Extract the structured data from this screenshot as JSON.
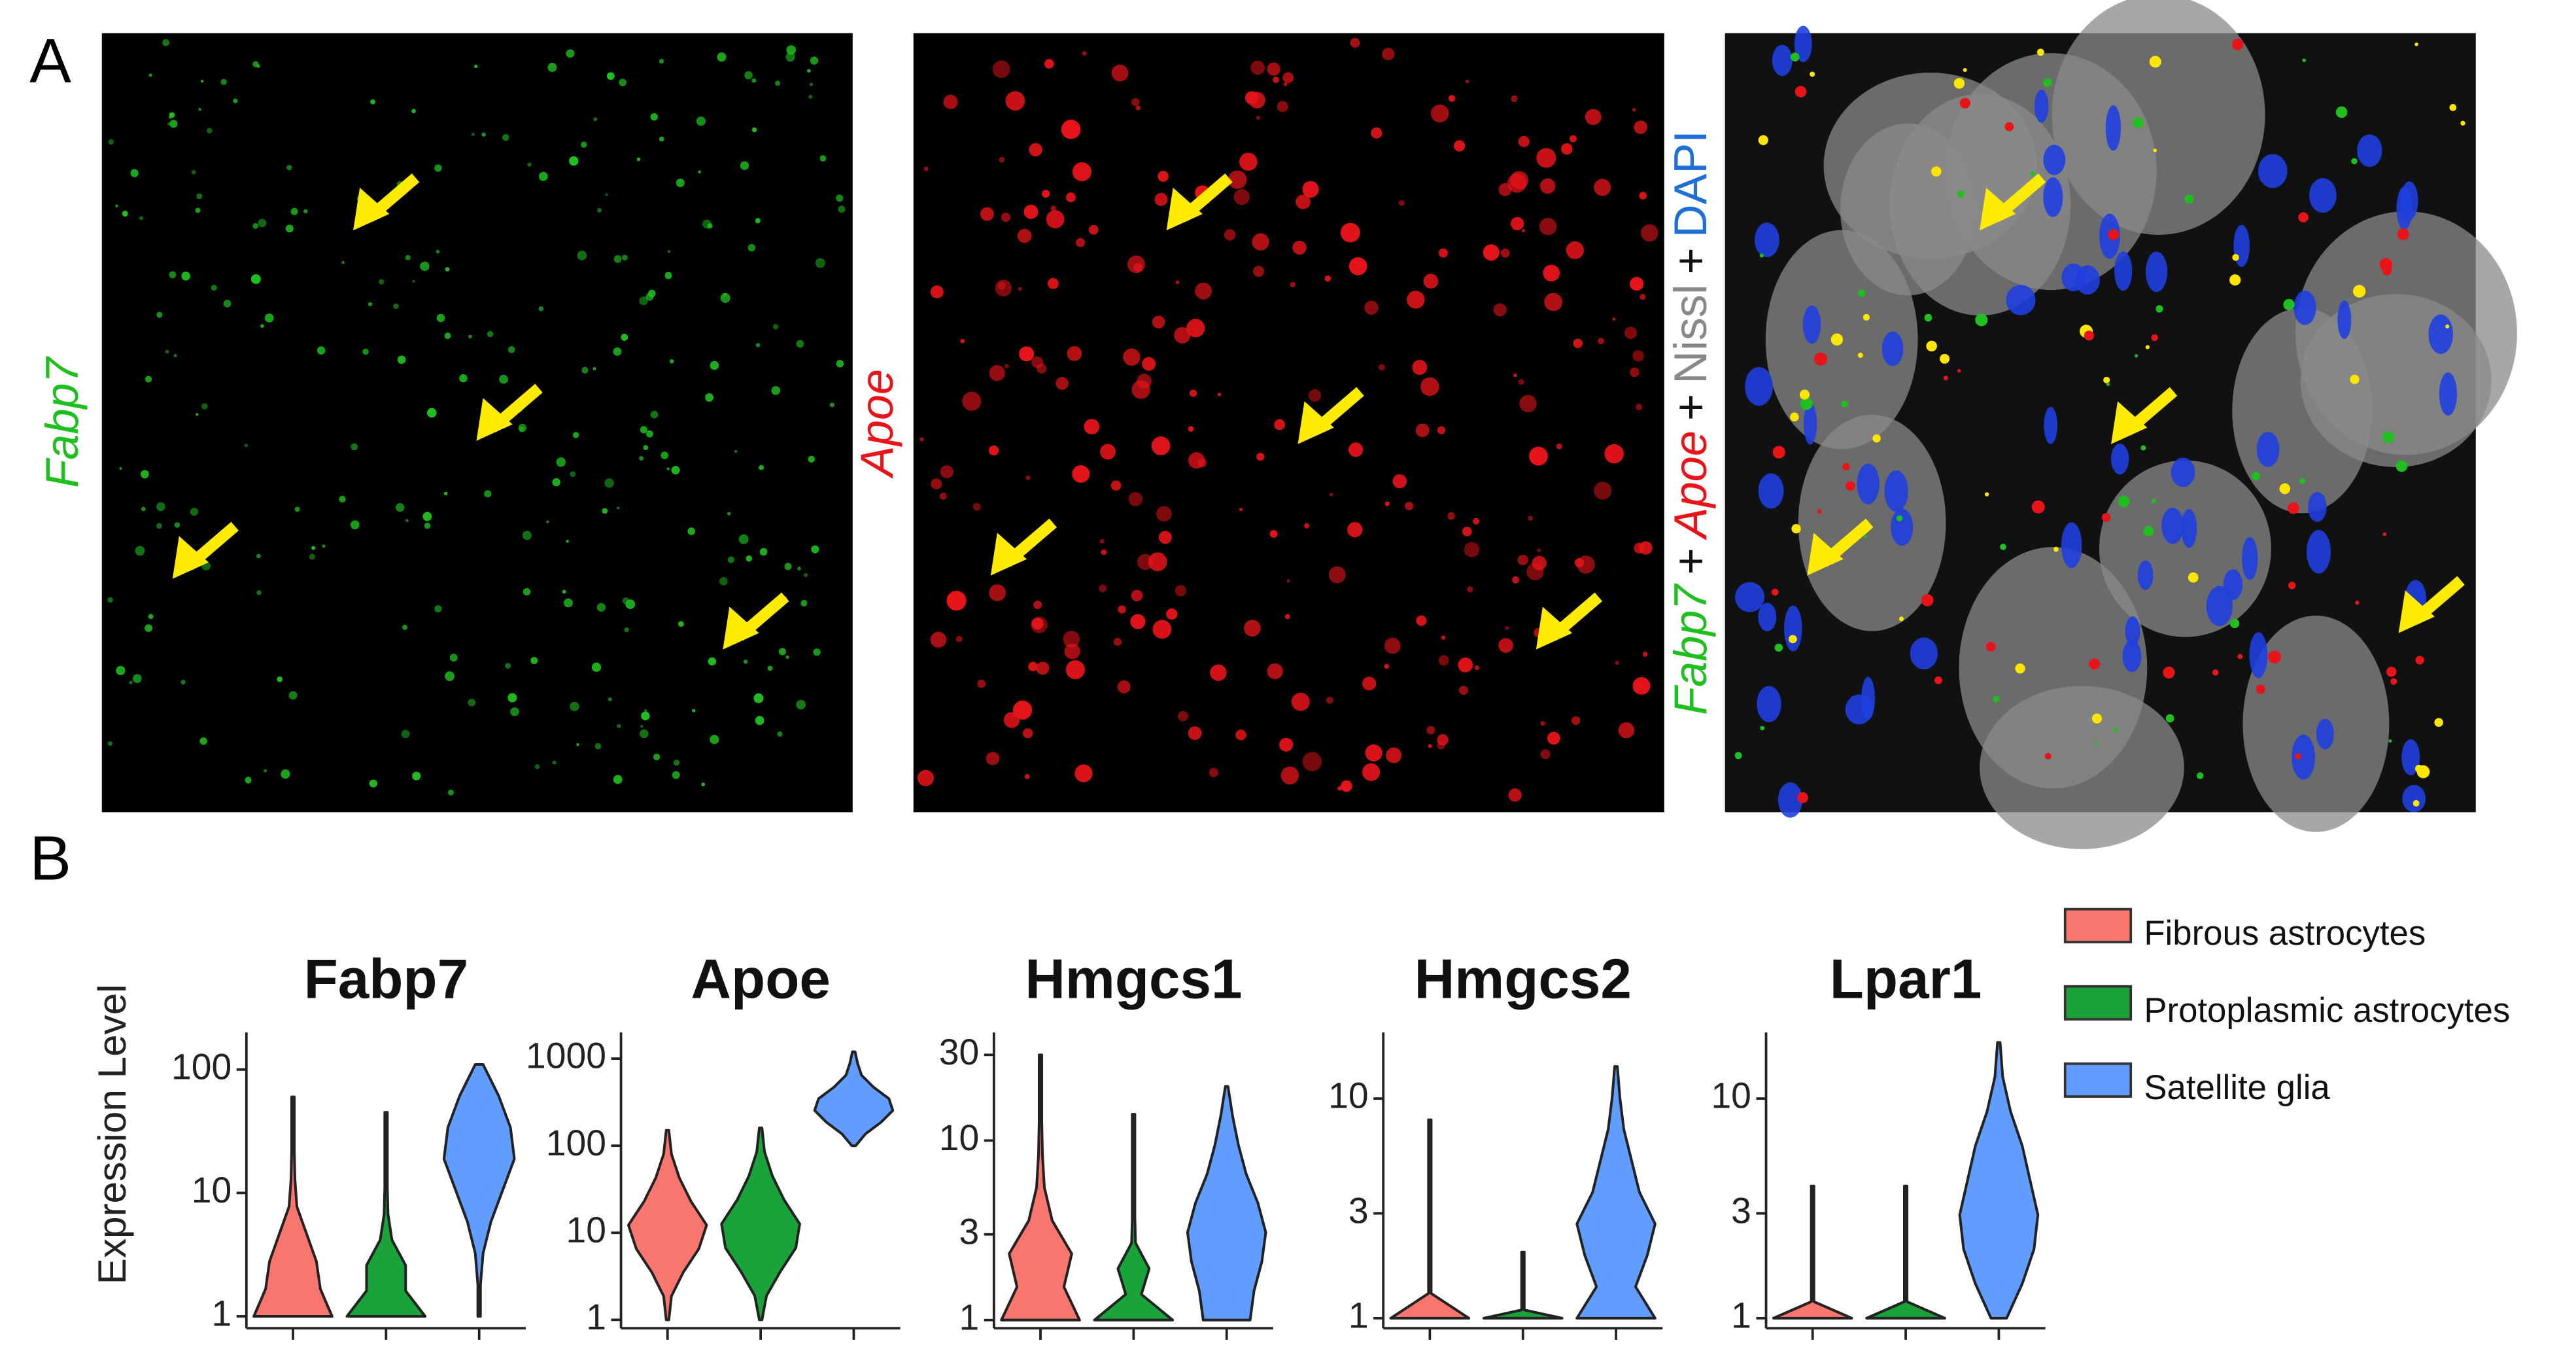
{
  "panel_a": {
    "label": "A",
    "images": [
      {
        "label": "Fabp7",
        "color": "#1fbf1f"
      },
      {
        "label": "Apoe",
        "color": "#e8141a"
      },
      {
        "label_parts": [
          {
            "text": "Fabp7",
            "color": "#1fbf1f"
          },
          {
            "text": "+",
            "color": "#111111"
          },
          {
            "text": "Apoe",
            "color": "#e8141a"
          },
          {
            "text": "+",
            "color": "#111111"
          },
          {
            "text": "Nissl",
            "color": "#888888"
          },
          {
            "text": "+",
            "color": "#111111"
          },
          {
            "text": "DAPI",
            "color": "#1f6fd6"
          }
        ]
      }
    ]
  },
  "panel_b_label": "B",
  "legend": {
    "series": [
      {
        "name": "Fibrous astrocytes",
        "color": "#f8766d"
      },
      {
        "name": "Protoplasmic astrocytes",
        "color": "#1aa33a"
      },
      {
        "name": "Satellite glia",
        "color": "#619cff"
      }
    ]
  },
  "chart_data": [
    {
      "type": "violin",
      "title": "Fabp7",
      "ylabel": "Expression Level",
      "log": true,
      "categories": [
        null,
        null,
        null
      ],
      "ylim": [
        0.8,
        200
      ],
      "yticks": [
        1,
        10,
        100
      ],
      "violins": [
        {
          "min": 1,
          "max": 60,
          "density": [
            1,
            0.7,
            0.6,
            0.35,
            0.1,
            0.05,
            0.03,
            0.02,
            0.01
          ]
        },
        {
          "min": 1,
          "max": 45,
          "density": [
            1,
            0.5,
            0.5,
            0.15,
            0.05,
            0.03,
            0.02,
            0.01,
            0.01
          ]
        },
        {
          "min": 1,
          "max": 110,
          "density": [
            0.01,
            0.03,
            0.1,
            0.3,
            0.6,
            0.9,
            0.8,
            0.5,
            0.1
          ]
        }
      ]
    },
    {
      "type": "violin",
      "title": "Apoe",
      "log": true,
      "categories": [
        null,
        null,
        null
      ],
      "ylim": [
        0.8,
        2000
      ],
      "yticks": [
        1,
        10,
        100,
        1000
      ],
      "violins": [
        {
          "min": 1,
          "max": 150,
          "density": [
            0.02,
            0.1,
            0.4,
            0.8,
            1,
            0.6,
            0.3,
            0.1,
            0.02
          ]
        },
        {
          "min": 1,
          "max": 160,
          "density": [
            0.02,
            0.15,
            0.5,
            0.9,
            1,
            0.6,
            0.3,
            0.1,
            0.02
          ]
        },
        {
          "min": 100,
          "max": 1200,
          "density": [
            0.05,
            0.3,
            0.7,
            1,
            0.9,
            0.5,
            0.2,
            0.1,
            0.02
          ]
        }
      ]
    },
    {
      "type": "violin",
      "title": "Hmgcs1",
      "log": true,
      "categories": [
        null,
        null,
        null
      ],
      "ylim": [
        0.9,
        40
      ],
      "yticks": [
        1,
        3,
        10,
        30
      ],
      "violins": [
        {
          "min": 1,
          "max": 30,
          "density": [
            1,
            0.6,
            0.8,
            0.3,
            0.1,
            0.05,
            0.03,
            0.02,
            0.01
          ]
        },
        {
          "min": 1,
          "max": 14,
          "density": [
            1,
            0.2,
            0.4,
            0.05,
            0.02,
            0.02,
            0.01,
            0.01,
            0.01
          ]
        },
        {
          "min": 1,
          "max": 20,
          "density": [
            0.6,
            0.7,
            0.9,
            1,
            0.8,
            0.5,
            0.3,
            0.15,
            0.02
          ]
        }
      ]
    },
    {
      "type": "violin",
      "title": "Hmgcs2",
      "log": true,
      "categories": [
        null,
        null,
        null
      ],
      "ylim": [
        0.9,
        20
      ],
      "yticks": [
        1,
        3,
        10
      ],
      "violins": [
        {
          "min": 1,
          "max": 8,
          "density": [
            1,
            0.02,
            0.02,
            0.02,
            0.02,
            0.01,
            0.01,
            0.01,
            0.01
          ]
        },
        {
          "min": 1,
          "max": 2,
          "density": [
            1,
            0.02,
            0.02,
            0.02,
            0.02,
            0.01,
            0.01,
            0.01,
            0.01
          ]
        },
        {
          "min": 1,
          "max": 14,
          "density": [
            1,
            0.5,
            0.8,
            1,
            0.6,
            0.4,
            0.2,
            0.1,
            0.02
          ]
        }
      ]
    },
    {
      "type": "violin",
      "title": "Lpar1",
      "log": true,
      "categories": [
        null,
        null,
        null
      ],
      "ylim": [
        0.9,
        20
      ],
      "yticks": [
        1,
        3,
        10
      ],
      "violins": [
        {
          "min": 1,
          "max": 4,
          "density": [
            1,
            0.02,
            0.02,
            0.02,
            0.02,
            0.01,
            0.01,
            0.01,
            0.01
          ]
        },
        {
          "min": 1,
          "max": 4,
          "density": [
            1,
            0.02,
            0.02,
            0.02,
            0.02,
            0.01,
            0.01,
            0.01,
            0.01
          ]
        },
        {
          "min": 1,
          "max": 18,
          "density": [
            0.2,
            0.6,
            0.9,
            1,
            0.8,
            0.6,
            0.3,
            0.1,
            0.02
          ]
        }
      ]
    }
  ]
}
